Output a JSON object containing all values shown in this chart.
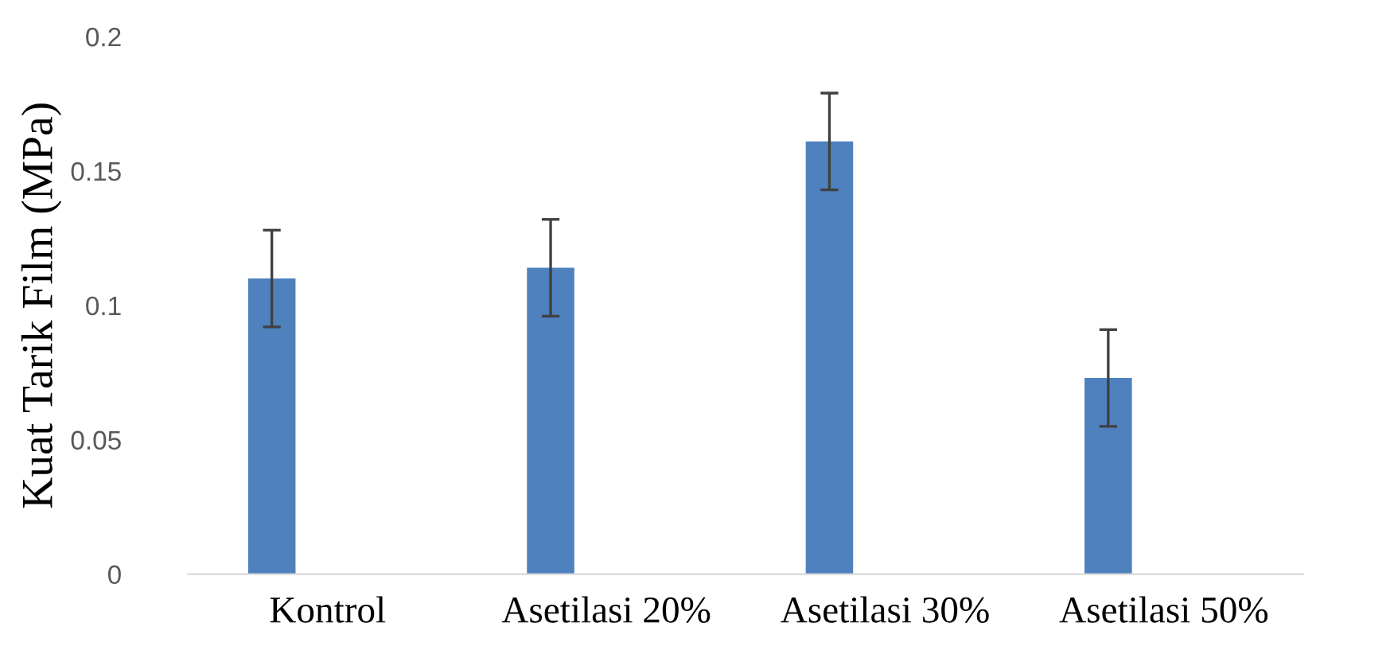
{
  "chart_data": {
    "type": "bar",
    "ylabel": "Kuat Tarik Film (MPa)",
    "categories": [
      "Kontrol",
      "Asetilasi 20%",
      "Asetilasi 30%",
      "Asetilasi 50%"
    ],
    "values": [
      0.11,
      0.114,
      0.161,
      0.073
    ],
    "errors": [
      0.018,
      0.018,
      0.018,
      0.018
    ],
    "color": "#4e81bd",
    "ylim": [
      0,
      0.2
    ],
    "yticks": [
      0,
      0.05,
      0.1,
      0.15,
      0.2
    ],
    "grid": false,
    "legend": false
  }
}
